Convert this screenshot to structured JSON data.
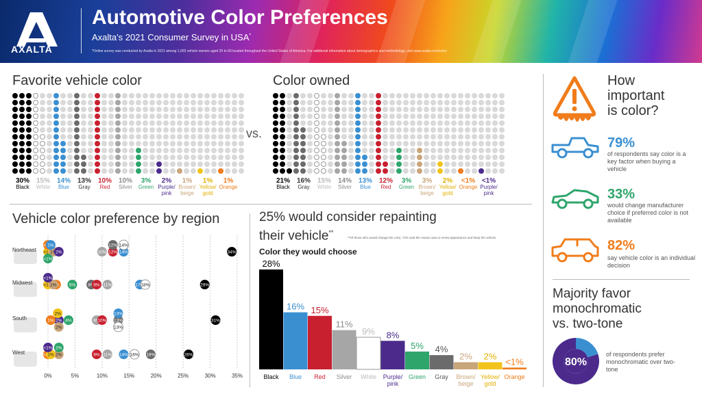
{
  "header": {
    "brand": "AXALTA",
    "title": "Automotive Color Preferences",
    "subtitle": "Axalta's 2021 Consumer Survey in USA",
    "subtitle_mark": "*",
    "footnote": "*Online survey was conducted by Axalta in 2021 among 1,003 vehicle owners aged 25 to 60 located throughout the United States of America. For additional information about demographics and methodology, visit www.axalta.com/color"
  },
  "favorite": {
    "heading": "Favorite vehicle color",
    "items": [
      {
        "pct": "30%",
        "label": "Black",
        "value": 30,
        "color": "#000000",
        "text_color": "#000000"
      },
      {
        "pct": "15%",
        "label": "White",
        "value": 15,
        "color": "#ffffff",
        "text_color": "#bbbbbb"
      },
      {
        "pct": "14%",
        "label": "Blue",
        "value": 14,
        "color": "#3a8fd1",
        "text_color": "#3a8fd1"
      },
      {
        "pct": "13%",
        "label": "Gray",
        "value": 13,
        "color": "#6b6b6b",
        "text_color": "#333333"
      },
      {
        "pct": "10%",
        "label": "Red",
        "value": 10,
        "color": "#c8202f",
        "text_color": "#c8202f"
      },
      {
        "pct": "10%",
        "label": "Silver",
        "value": 10,
        "color": "#a6a6a6",
        "text_color": "#8c8c8c"
      },
      {
        "pct": "3%",
        "label": "Green",
        "value": 3,
        "color": "#2ea56b",
        "text_color": "#2ea56b"
      },
      {
        "pct": "2%",
        "label": "Purple/ pink",
        "value": 2,
        "color": "#4b2a8c",
        "text_color": "#4b2a8c"
      },
      {
        "pct": "1%",
        "label": "Brown/ beige",
        "value": 1,
        "color": "#c9a57a",
        "text_color": "#c9a57a"
      },
      {
        "pct": "1%",
        "label": "Yellow/ gold",
        "value": 1,
        "color": "#f2c31b",
        "text_color": "#e0b000"
      },
      {
        "pct": "1%",
        "label": "Orange",
        "value": 1,
        "color": "#f07c1b",
        "text_color": "#f07c1b"
      }
    ]
  },
  "vs_label": "vs.",
  "owned": {
    "heading": "Color owned",
    "items": [
      {
        "pct": "21%",
        "label": "Black",
        "value": 21,
        "color": "#000000",
        "text_color": "#000000"
      },
      {
        "pct": "16%",
        "label": "Gray",
        "value": 16,
        "color": "#6b6b6b",
        "text_color": "#333333"
      },
      {
        "pct": "15%",
        "label": "White",
        "value": 15,
        "color": "#ffffff",
        "text_color": "#bbbbbb"
      },
      {
        "pct": "14%",
        "label": "Silver",
        "value": 14,
        "color": "#a6a6a6",
        "text_color": "#8c8c8c"
      },
      {
        "pct": "13%",
        "label": "Blue",
        "value": 13,
        "color": "#3a8fd1",
        "text_color": "#3a8fd1"
      },
      {
        "pct": "12%",
        "label": "Red",
        "value": 12,
        "color": "#c8202f",
        "text_color": "#c8202f"
      },
      {
        "pct": "3%",
        "label": "Green",
        "value": 3,
        "color": "#2ea56b",
        "text_color": "#2ea56b"
      },
      {
        "pct": "3%",
        "label": "Brown/ beige",
        "value": 3,
        "color": "#c9a57a",
        "text_color": "#c9a57a"
      },
      {
        "pct": "2%",
        "label": "Yellow/ gold",
        "value": 2,
        "color": "#f2c31b",
        "text_color": "#e0b000"
      },
      {
        "pct": "<1%",
        "label": "Orange",
        "value": 0.5,
        "color": "#f07c1b",
        "text_color": "#f07c1b"
      },
      {
        "pct": "<1%",
        "label": "Purple/ pink",
        "value": 0.5,
        "color": "#4b2a8c",
        "text_color": "#4b2a8c"
      }
    ]
  },
  "region": {
    "heading": "Vehicle color preference by region",
    "x_ticks": [
      "0%",
      "5%",
      "10%",
      "15%",
      "20%",
      "25%",
      "30%",
      "35%"
    ],
    "xlim": [
      0,
      35
    ],
    "regions": [
      {
        "name": "Northeast",
        "points": [
          {
            "label": "<1%",
            "value": 0,
            "color": "#f2c31b"
          },
          {
            "label": "1%",
            "value": 1,
            "color": "#c9a57a"
          },
          {
            "label": "<1%",
            "value": 0,
            "color": "#f07c1b"
          },
          {
            "label": "<1%",
            "value": 0,
            "color": "#2ea56b"
          },
          {
            "label": "2%",
            "value": 2,
            "color": "#4b2a8c"
          },
          {
            "label": "1%",
            "value": 0.5,
            "color": "#3a8fd1"
          },
          {
            "label": "10%",
            "value": 10,
            "color": "#a6a6a6"
          },
          {
            "label": "12%",
            "value": 12,
            "color": "#c8202f"
          },
          {
            "label": "12%",
            "value": 12,
            "color": "#6b6b6b"
          },
          {
            "label": "14%",
            "value": 14,
            "color": "#3a8fd1"
          },
          {
            "label": "14%",
            "value": 14,
            "color": "#ffffff"
          },
          {
            "label": "34%",
            "value": 34,
            "color": "#000000"
          }
        ]
      },
      {
        "name": "Midwest",
        "points": [
          {
            "label": "<1%",
            "value": 0,
            "color": "#f2c31b"
          },
          {
            "label": "2%",
            "value": 1.5,
            "color": "#f07c1b"
          },
          {
            "label": "1%",
            "value": 1,
            "color": "#c9a57a"
          },
          {
            "label": "<1%",
            "value": 0,
            "color": "#4b2a8c"
          },
          {
            "label": "5%",
            "value": 4.5,
            "color": "#2ea56b"
          },
          {
            "label": "8%",
            "value": 8,
            "color": "#6b6b6b"
          },
          {
            "label": "9%",
            "value": 9,
            "color": "#c8202f"
          },
          {
            "label": "11%",
            "value": 11,
            "color": "#a6a6a6"
          },
          {
            "label": "17%",
            "value": 17,
            "color": "#3a8fd1"
          },
          {
            "label": "18%",
            "value": 18,
            "color": "#ffffff"
          },
          {
            "label": "29%",
            "value": 29,
            "color": "#000000"
          }
        ]
      },
      {
        "name": "South",
        "points": [
          {
            "label": "2%",
            "value": 2,
            "color": "#4b2a8c"
          },
          {
            "label": "1%",
            "value": 0.5,
            "color": "#f07c1b"
          },
          {
            "label": "2%",
            "value": 1.8,
            "color": "#f2c31b"
          },
          {
            "label": "4%",
            "value": 3.8,
            "color": "#2ea56b"
          },
          {
            "label": "2%",
            "value": 2,
            "color": "#c9a57a"
          },
          {
            "label": "9%",
            "value": 9,
            "color": "#a6a6a6"
          },
          {
            "label": "10%",
            "value": 10,
            "color": "#c8202f"
          },
          {
            "label": "13%",
            "value": 13,
            "color": "#6b6b6b"
          },
          {
            "label": "13%",
            "value": 13,
            "color": "#3a8fd1"
          },
          {
            "label": "13%",
            "value": 13,
            "color": "#ffffff"
          },
          {
            "label": "31%",
            "value": 31,
            "color": "#000000"
          }
        ]
      },
      {
        "name": "West",
        "points": [
          {
            "label": "<1%",
            "value": 0,
            "color": "#f07c1b"
          },
          {
            "label": "2%",
            "value": 2,
            "color": "#c9a57a"
          },
          {
            "label": "1%",
            "value": 0.5,
            "color": "#f2c31b"
          },
          {
            "label": "<1%",
            "value": 0,
            "color": "#4b2a8c"
          },
          {
            "label": "2%",
            "value": 2,
            "color": "#2ea56b"
          },
          {
            "label": "9%",
            "value": 9,
            "color": "#c8202f"
          },
          {
            "label": "11%",
            "value": 11,
            "color": "#a6a6a6"
          },
          {
            "label": "14%",
            "value": 14,
            "color": "#3a8fd1"
          },
          {
            "label": "16%",
            "value": 16,
            "color": "#ffffff"
          },
          {
            "label": "19%",
            "value": 19,
            "color": "#6b6b6b"
          },
          {
            "label": "26%",
            "value": 26,
            "color": "#000000"
          }
        ]
      }
    ]
  },
  "repaint": {
    "title_line1": "25% would consider repainting",
    "title_line2": "their vehicle",
    "title_mark": "**",
    "note": "**Of those who would change the color, 72% said the reason was to renew appearance and keep the vehicle.",
    "subheading": "Color they would choose"
  },
  "chart_data": {
    "type": "bar",
    "title": "Color they would choose",
    "categories": [
      "Black",
      "Blue",
      "Red",
      "Silver",
      "White",
      "Purple/ pink",
      "Green",
      "Gray",
      "Brown/ beige",
      "Yellow/ gold",
      "Orange"
    ],
    "labels": [
      "28%",
      "16%",
      "15%",
      "11%",
      "9%",
      "8%",
      "5%",
      "4%",
      "2%",
      "2%",
      "<1%"
    ],
    "values": [
      28,
      16,
      15,
      11,
      9,
      8,
      5,
      4,
      2,
      2,
      0.5
    ],
    "colors": [
      "#000000",
      "#3a8fd1",
      "#c8202f",
      "#a6a6a6",
      "#ffffff",
      "#4b2a8c",
      "#2ea56b",
      "#6b6b6b",
      "#c9a57a",
      "#f2c31b",
      "#f07c1b"
    ],
    "label_colors": [
      "#000000",
      "#3a8fd1",
      "#c8202f",
      "#8c8c8c",
      "#bbbbbb",
      "#4b2a8c",
      "#2ea56b",
      "#555555",
      "#c9a57a",
      "#e0b000",
      "#f07c1b"
    ],
    "ylim": [
      0,
      28
    ]
  },
  "importance": {
    "title_line1": "How",
    "title_line2": "important",
    "title_line3": "is color?",
    "stats": [
      {
        "pct": "79%",
        "text": "of respondents say color is a key factor when buying a vehicle",
        "color": "#3a8fd1",
        "icon": "pickup-truck-icon"
      },
      {
        "pct": "33%",
        "text": "would change manufacturer choice if preferred color is not available",
        "color": "#2ea56b",
        "icon": "sports-car-icon"
      },
      {
        "pct": "82%",
        "text": "say vehicle color is an individual decision",
        "color": "#f07c1b",
        "icon": "suv-icon"
      }
    ]
  },
  "mono": {
    "title_line1": "Majority favor",
    "title_line2": "monochromatic",
    "title_line3": "vs. two-tone",
    "pct": "80%",
    "value": 80,
    "text": "of respondents prefer monochromatic over two-tone",
    "main_color": "#4b2a8c",
    "accent_color": "#3a8fd1"
  }
}
